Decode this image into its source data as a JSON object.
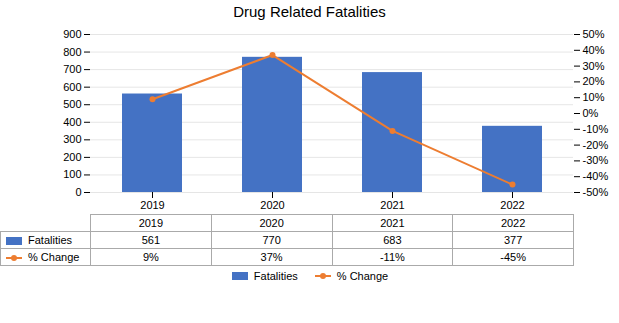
{
  "chart_data": {
    "type": "bar",
    "title": "Drug Related Fatalities",
    "categories": [
      "2019",
      "2020",
      "2021",
      "2022"
    ],
    "series": [
      {
        "name": "Fatalities",
        "type": "bar",
        "color": "#4472C4",
        "values": [
          561,
          770,
          683,
          377
        ]
      },
      {
        "name": "% Change",
        "type": "line",
        "axis": "y2",
        "color": "#ED7D31",
        "marker": "circle",
        "values": [
          9,
          37,
          -11,
          -45
        ],
        "value_labels": [
          "9%",
          "37%",
          "-11%",
          "-45%"
        ]
      }
    ],
    "ylim": [
      0,
      900
    ],
    "yticks": [
      0,
      100,
      200,
      300,
      400,
      500,
      600,
      700,
      800,
      900
    ],
    "y2lim": [
      -50,
      50
    ],
    "y2ticks": [
      {
        "value": -50,
        "label": "-50%"
      },
      {
        "value": -40,
        "label": "-40%"
      },
      {
        "value": -30,
        "label": "-30%"
      },
      {
        "value": -20,
        "label": "-20%"
      },
      {
        "value": -10,
        "label": "-10%"
      },
      {
        "value": 0,
        "label": "0%"
      },
      {
        "value": 10,
        "label": "10%"
      },
      {
        "value": 20,
        "label": "20%"
      },
      {
        "value": 30,
        "label": "30%"
      },
      {
        "value": 40,
        "label": "40%"
      },
      {
        "value": 50,
        "label": "50%"
      }
    ],
    "grid": true,
    "data_labels": true,
    "legend": "bottom"
  }
}
